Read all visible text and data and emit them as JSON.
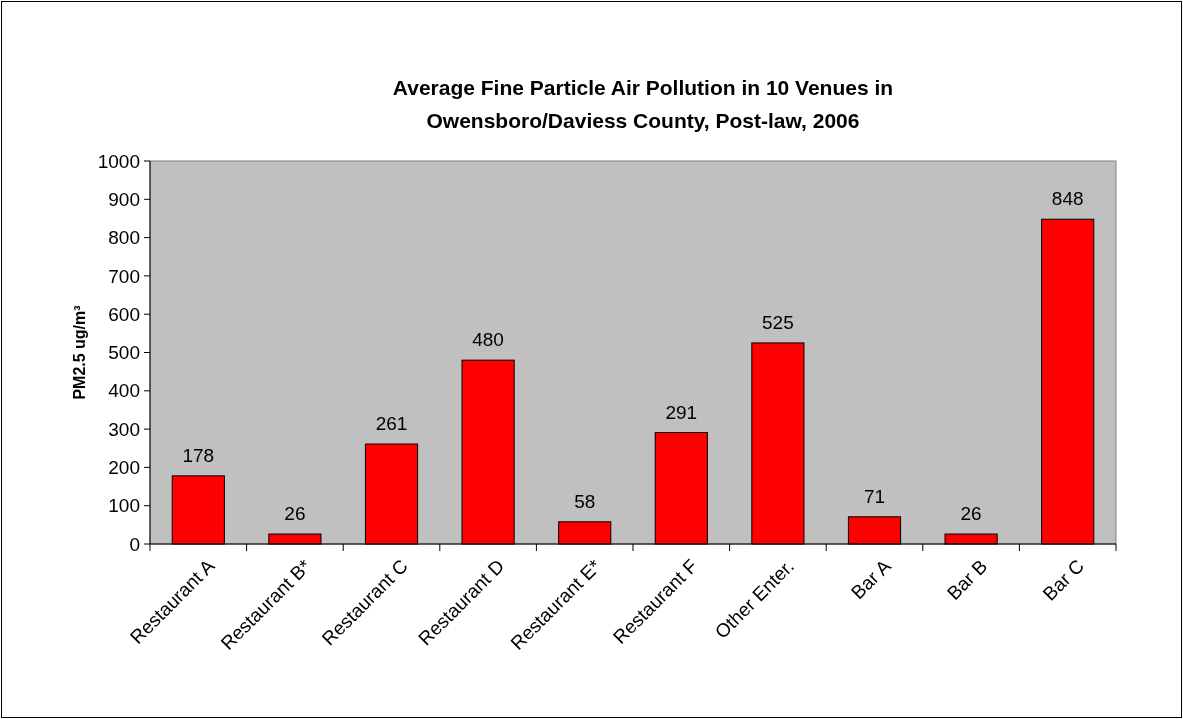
{
  "chart_data": {
    "type": "bar",
    "title": "Average Fine Particle Air Pollution in 10 Venues in Owensboro/Daviess County, Post-law, 2006",
    "ylabel": "PM2.5 ug/m³",
    "categories": [
      "Restaurant A",
      "Restaurant B*",
      "Restaurant C",
      "Restaurant D",
      "Restaurant E*",
      "Restaurant F",
      "Other Enter.",
      "Bar A",
      "Bar B",
      "Bar C"
    ],
    "values": [
      178,
      26,
      261,
      480,
      58,
      291,
      525,
      71,
      26,
      848
    ],
    "color": "#ff0000",
    "ylim": [
      0,
      1000
    ],
    "yticks": [
      0,
      100,
      200,
      300,
      400,
      500,
      600,
      700,
      800,
      900,
      1000
    ],
    "data_labels": true
  }
}
